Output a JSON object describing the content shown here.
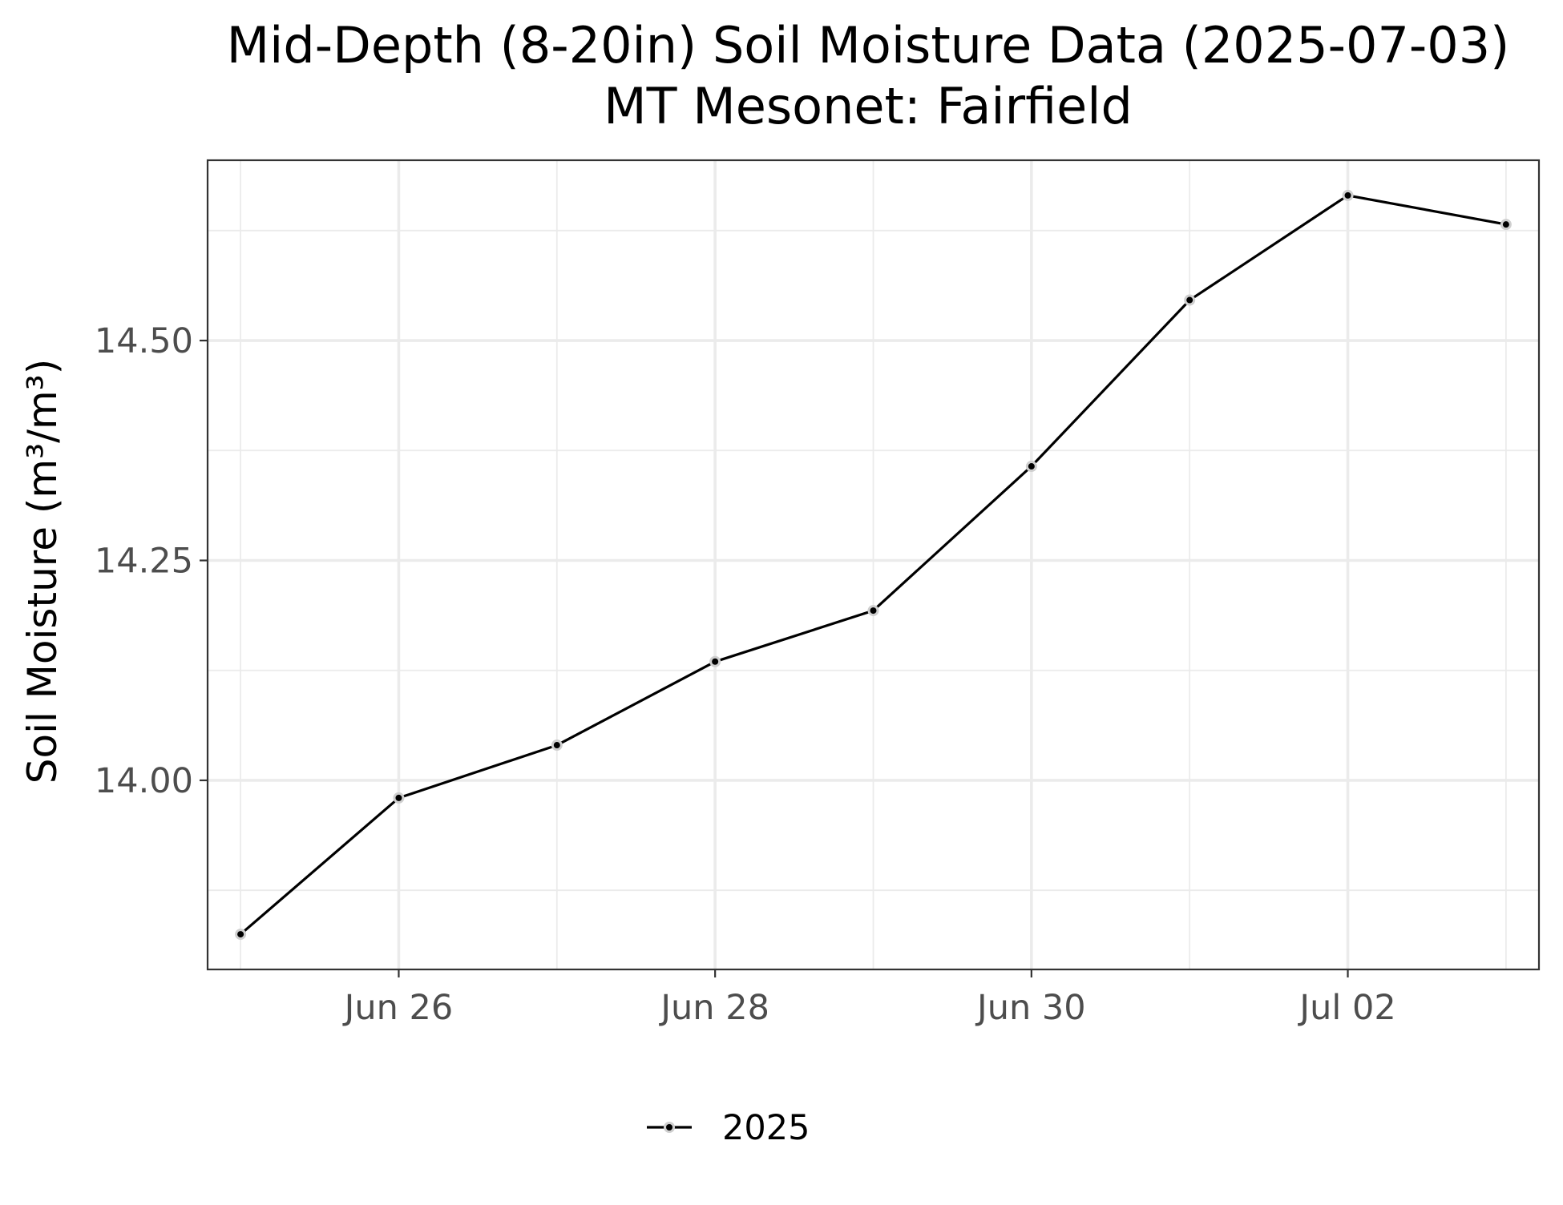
{
  "chart_data": {
    "type": "line",
    "title": "Mid-Depth (8-20in) Soil Moisture Data (2025-07-03)",
    "subtitle": "MT Mesonet: Fairfield",
    "xlabel": "",
    "ylabel": "Soil Moisture (m³/m³)",
    "x_type": "date",
    "xlim": [
      "2025-06-24T19:00",
      "2025-07-03T05:00"
    ],
    "ylim": [
      13.785,
      14.705
    ],
    "x_ticks": [
      {
        "value": "2025-06-26",
        "label": "Jun 26"
      },
      {
        "value": "2025-06-28",
        "label": "Jun 28"
      },
      {
        "value": "2025-06-30",
        "label": "Jun 30"
      },
      {
        "value": "2025-07-02",
        "label": "Jul 02"
      }
    ],
    "x_minor_ticks": [
      "2025-06-25",
      "2025-06-27",
      "2025-06-29",
      "2025-07-01",
      "2025-07-03"
    ],
    "y_ticks": [
      {
        "value": 14.0,
        "label": "14.00"
      },
      {
        "value": 14.25,
        "label": "14.25"
      },
      {
        "value": 14.5,
        "label": "14.50"
      }
    ],
    "y_minor_ticks": [
      13.875,
      14.125,
      14.375,
      14.625
    ],
    "grid": true,
    "legend_position": "bottom",
    "series": [
      {
        "name": "2025",
        "color": "#000000",
        "points": [
          {
            "x": "2025-06-25",
            "y": 13.825
          },
          {
            "x": "2025-06-26",
            "y": 13.98
          },
          {
            "x": "2025-06-27",
            "y": 14.04
          },
          {
            "x": "2025-06-28",
            "y": 14.135
          },
          {
            "x": "2025-06-29",
            "y": 14.193
          },
          {
            "x": "2025-06-30",
            "y": 14.357
          },
          {
            "x": "2025-07-01",
            "y": 14.546
          },
          {
            "x": "2025-07-02",
            "y": 14.665
          },
          {
            "x": "2025-07-03",
            "y": 14.632
          }
        ]
      }
    ]
  }
}
